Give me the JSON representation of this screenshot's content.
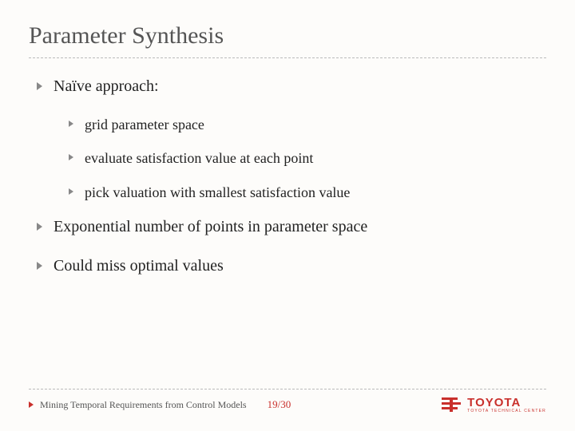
{
  "title": "Parameter Synthesis",
  "bullets": {
    "top1": "Naïve approach:",
    "sub1": "grid parameter space",
    "sub2": "evaluate satisfaction value at each point",
    "sub3": "pick valuation with smallest satisfaction value",
    "top2": "Exponential number of points in parameter space",
    "top3": "Could miss optimal values"
  },
  "footer": {
    "text": "Mining Temporal Requirements from Control Models",
    "page": "19/30"
  },
  "logo": {
    "main": "TOYOTA",
    "sub": "TOYOTA TECHNICAL CENTER"
  },
  "colors": {
    "accent": "#c9302c",
    "text": "#333",
    "bullet_gray": "#888",
    "dash": "#bbb",
    "background": "#fdfcfa"
  }
}
